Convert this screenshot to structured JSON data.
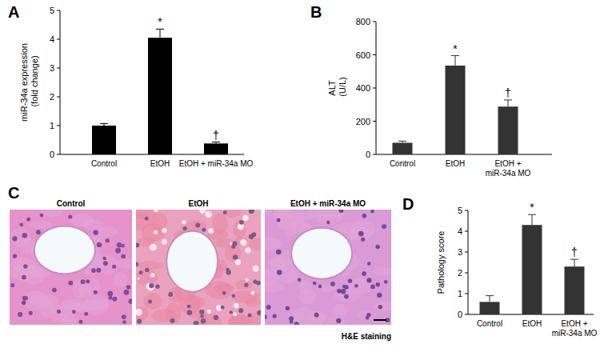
{
  "chart_data": [
    {
      "type": "bar",
      "title": "A",
      "y_label": "miR-34a expression (fold change)",
      "categories": [
        "Control",
        "EtOH",
        "EtOH + miR-34a MO"
      ],
      "values": [
        1.0,
        4.05,
        0.38
      ],
      "errors": [
        0.07,
        0.3,
        0.05
      ],
      "annotations": [
        null,
        "*",
        "†"
      ],
      "color": "#000000",
      "ylim": [
        0,
        5
      ],
      "yticks": [
        0,
        1,
        2,
        3,
        4,
        5
      ],
      "grid": false,
      "data_labels": false
    },
    {
      "type": "bar",
      "title": "B",
      "y_label": "ALT (U/L)",
      "categories": [
        "Control",
        "EtOH",
        "EtOH + miR-34a MO"
      ],
      "values": [
        70,
        535,
        288
      ],
      "errors": [
        10,
        60,
        40
      ],
      "annotations": [
        null,
        "*",
        "†"
      ],
      "color": "#333333",
      "ylim": [
        0,
        800
      ],
      "yticks": [
        0,
        200,
        400,
        600,
        800
      ],
      "grid": false,
      "data_labels": false
    },
    {
      "type": "bar",
      "title": "D",
      "y_label": "Pathology score",
      "categories": [
        "Control",
        "EtOH",
        "EtOH + miR-34a MO"
      ],
      "values": [
        0.6,
        4.3,
        2.3
      ],
      "errors": [
        0.3,
        0.5,
        0.35
      ],
      "annotations": [
        null,
        "*",
        "†"
      ],
      "color": "#333333",
      "ylim": [
        0,
        5
      ],
      "yticks": [
        0,
        1,
        2,
        3,
        4,
        5
      ],
      "grid": false,
      "data_labels": false
    }
  ],
  "image_panel": {
    "label": "C",
    "captions": [
      "Control",
      "EtOH",
      "EtOH + miR-34a MO"
    ],
    "stain": "H&E staining"
  }
}
